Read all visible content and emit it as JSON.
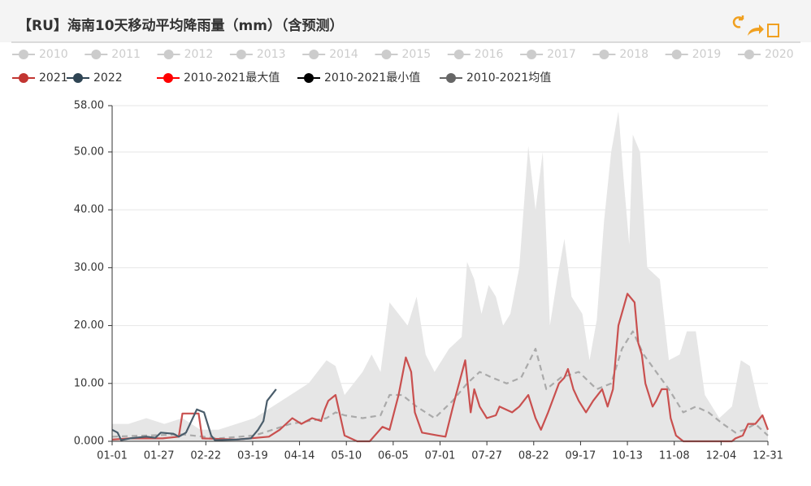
{
  "chart_data": {
    "type": "line",
    "title": "【RU】海南10天移动平均降雨量（mm）（含预测）",
    "legend_inactive": [
      "2010",
      "2011",
      "2012",
      "2013",
      "2014",
      "2015",
      "2016",
      "2017",
      "2018",
      "2019",
      "2020"
    ],
    "xlim": [
      1,
      365
    ],
    "xticks": [
      {
        "value": 1,
        "label": "01-01"
      },
      {
        "value": 27,
        "label": "01-27"
      },
      {
        "value": 53,
        "label": "02-22"
      },
      {
        "value": 79,
        "label": "03-19"
      },
      {
        "value": 105,
        "label": "04-14"
      },
      {
        "value": 131,
        "label": "05-10"
      },
      {
        "value": 157,
        "label": "06-05"
      },
      {
        "value": 183,
        "label": "07-01"
      },
      {
        "value": 209,
        "label": "07-27"
      },
      {
        "value": 235,
        "label": "08-22"
      },
      {
        "value": 261,
        "label": "09-17"
      },
      {
        "value": 287,
        "label": "10-13"
      },
      {
        "value": 313,
        "label": "11-08"
      },
      {
        "value": 339,
        "label": "12-04"
      },
      {
        "value": 365,
        "label": "12-31"
      }
    ],
    "ylim": [
      0,
      58
    ],
    "yticks": [
      {
        "value": 0,
        "label": "0.000"
      },
      {
        "value": 10,
        "label": "10.00"
      },
      {
        "value": 20,
        "label": "20.00"
      },
      {
        "value": 30,
        "label": "30.00"
      },
      {
        "value": 40,
        "label": "40.00"
      },
      {
        "value": 50,
        "label": "50.00"
      },
      {
        "value": 58,
        "label": "58.00"
      }
    ],
    "grid": true,
    "series": [
      {
        "name": "2010-2021最大值",
        "color": "#ff0000",
        "style": "area",
        "area_color": "#e6e6e6",
        "x": [
          1,
          10,
          20,
          30,
          40,
          50,
          60,
          70,
          80,
          90,
          100,
          110,
          120,
          125,
          130,
          140,
          145,
          150,
          155,
          160,
          165,
          170,
          175,
          180,
          188,
          195,
          198,
          202,
          206,
          210,
          214,
          218,
          222,
          227,
          232,
          236,
          240,
          244,
          248,
          252,
          256,
          258,
          262,
          266,
          270,
          274,
          278,
          282,
          285,
          288,
          290,
          294,
          298,
          305,
          310,
          316,
          320,
          325,
          330,
          338,
          345,
          350,
          355,
          360,
          365
        ],
        "values": [
          3,
          3,
          4,
          3,
          4,
          2,
          2,
          3,
          4,
          6,
          8,
          10,
          14,
          13,
          8,
          12,
          15,
          12,
          24,
          22,
          20,
          25,
          15,
          12,
          16,
          18,
          31,
          28,
          22,
          27,
          25,
          20,
          22,
          30,
          51,
          40,
          50,
          20,
          28,
          35,
          25,
          24,
          22,
          14,
          21,
          38,
          50,
          57,
          45,
          34,
          53,
          50,
          30,
          28,
          14,
          15,
          19,
          19,
          8,
          4,
          6,
          14,
          13,
          6,
          2
        ]
      },
      {
        "name": "2010-2021最小值",
        "color": "#000000",
        "style": "none",
        "x": [
          1,
          365
        ],
        "values": [
          0,
          0
        ]
      },
      {
        "name": "2010-2021均值",
        "color": "#666666",
        "style": "dashed",
        "line_color": "#aaaaaa",
        "x": [
          1,
          20,
          40,
          60,
          80,
          90,
          100,
          110,
          120,
          125,
          130,
          140,
          150,
          155,
          162,
          170,
          180,
          190,
          198,
          205,
          212,
          220,
          228,
          236,
          242,
          250,
          260,
          270,
          278,
          284,
          290,
          296,
          303,
          310,
          318,
          325,
          332,
          340,
          347,
          352,
          358,
          365
        ],
        "values": [
          0.8,
          1,
          1.2,
          0.5,
          1,
          2,
          3,
          3.5,
          4,
          5,
          4.5,
          4,
          4.5,
          8,
          8,
          6,
          4,
          7,
          10,
          12,
          11,
          10,
          11,
          16,
          9,
          11,
          12,
          9,
          10,
          16,
          19,
          15,
          12,
          9,
          5,
          6,
          5,
          3,
          1.5,
          2,
          3,
          1
        ]
      },
      {
        "name": "2021",
        "color": "#c23531",
        "style": "line",
        "line_color": "#c9504f",
        "x": [
          1,
          11,
          29,
          38,
          40,
          49,
          51,
          70,
          88,
          94,
          101,
          106,
          112,
          117,
          119,
          121,
          125,
          130,
          137,
          144,
          151,
          155,
          160,
          164,
          167,
          169,
          173,
          182,
          186,
          191,
          197,
          200,
          202,
          205,
          209,
          214,
          216,
          223,
          227,
          232,
          236,
          239,
          243,
          249,
          252,
          254,
          257,
          260,
          264,
          268,
          273,
          276,
          279,
          282,
          287,
          291,
          293,
          295,
          297,
          301,
          303,
          306,
          309,
          311,
          314,
          318,
          345,
          347,
          351,
          354,
          358,
          362,
          365
        ],
        "values": [
          0.3,
          0.5,
          0.5,
          0.8,
          4.8,
          4.8,
          0.5,
          0.3,
          0.8,
          2,
          4,
          3,
          4,
          3.5,
          5.5,
          7,
          8,
          1,
          0,
          0,
          2.5,
          2,
          8,
          14.5,
          12,
          5,
          1.5,
          1,
          0.8,
          7,
          14,
          5,
          9,
          6,
          4,
          4.5,
          6,
          5,
          6,
          8,
          4,
          2,
          5,
          10,
          11,
          12.5,
          9,
          7,
          5,
          7,
          9,
          6,
          9,
          20,
          25.5,
          24,
          17,
          15,
          10,
          6,
          7,
          9,
          9,
          4,
          1,
          0,
          0,
          0.5,
          1,
          3,
          3,
          4.5,
          2
        ]
      },
      {
        "name": "2022",
        "color": "#2f4554",
        "style": "line",
        "line_color": "#4a5d6b",
        "x": [
          1,
          4,
          6,
          11,
          20,
          25,
          28,
          35,
          38,
          42,
          48,
          52,
          56,
          58,
          70,
          78,
          82,
          85,
          87,
          92
        ],
        "values": [
          2,
          1.5,
          0.2,
          0.5,
          0.8,
          0.6,
          1.5,
          1.3,
          0.8,
          1.5,
          5.5,
          5,
          1,
          0.2,
          0.3,
          0.5,
          2,
          3.5,
          7,
          9
        ]
      }
    ]
  }
}
